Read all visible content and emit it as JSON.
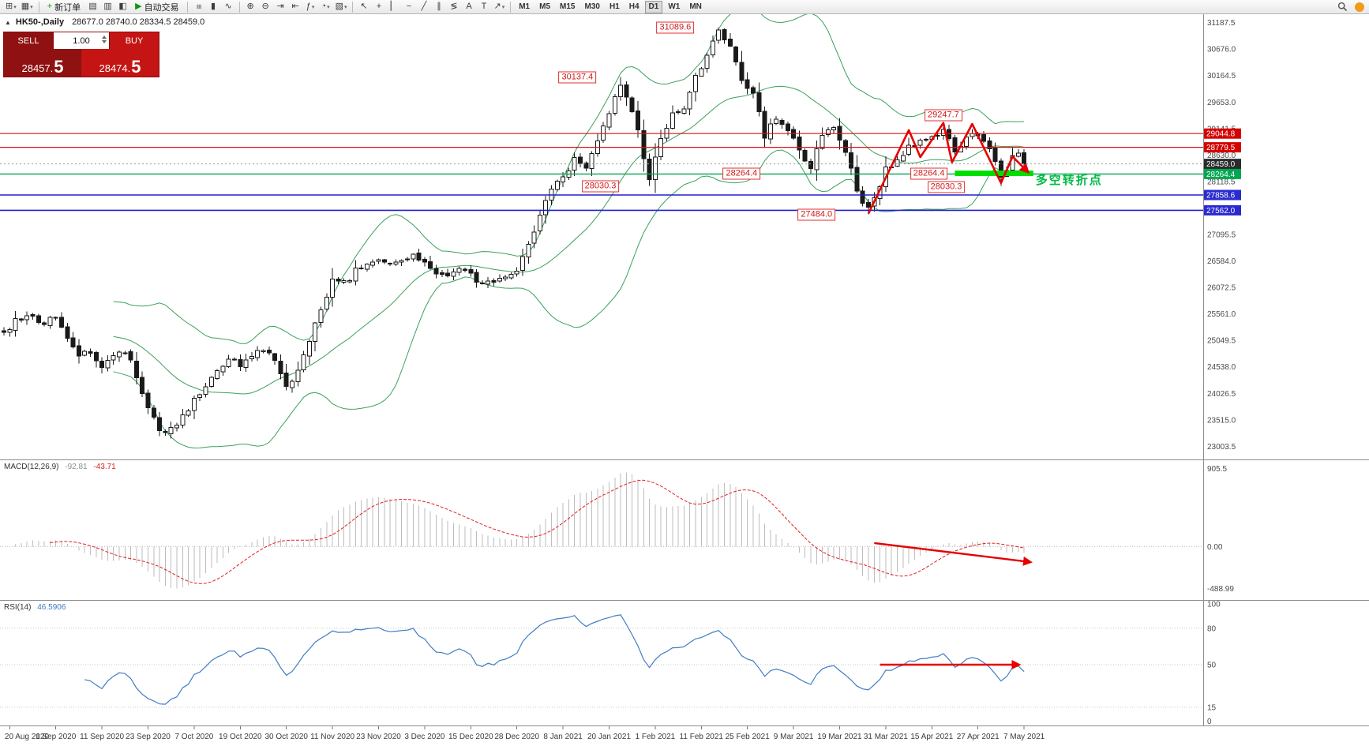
{
  "toolbar": {
    "dropdown_glyph": "▾",
    "groups": [
      {
        "items": [
          {
            "name": "new-chart",
            "icon": "new-chart-icon",
            "glyph": "⊞",
            "dd": true
          },
          {
            "name": "profiles",
            "icon": "profiles-icon",
            "glyph": "▦",
            "dd": true
          }
        ]
      },
      {
        "items": [
          {
            "name": "new-order",
            "icon": "plus-icon",
            "glyph": "+",
            "glyph_color": "#0b9a0b",
            "label": "新订单"
          },
          {
            "name": "market-watch",
            "icon": "market-watch-icon",
            "glyph": "▤"
          },
          {
            "name": "data-window",
            "icon": "data-window-icon",
            "glyph": "▥"
          },
          {
            "name": "navigator",
            "icon": "navigator-icon",
            "glyph": "◧"
          },
          {
            "name": "auto-trading",
            "icon": "play-icon",
            "glyph": "▶",
            "glyph_color": "#0b9a0b",
            "label": "自动交易"
          }
        ]
      },
      {
        "items": [
          {
            "name": "bar-chart",
            "icon": "bar-chart-icon",
            "glyph": "≡",
            "rot": true
          },
          {
            "name": "candlestick-chart",
            "icon": "candlestick-chart-icon",
            "glyph": "▮"
          },
          {
            "name": "line-chart",
            "icon": "line-chart-icon",
            "glyph": "∿"
          }
        ]
      },
      {
        "items": [
          {
            "name": "zoom-in",
            "icon": "zoom-in-icon",
            "glyph": "⊕"
          },
          {
            "name": "zoom-out",
            "icon": "zoom-out-icon",
            "glyph": "⊖"
          },
          {
            "name": "auto-scroll",
            "icon": "auto-scroll-icon",
            "glyph": "⇥"
          },
          {
            "name": "chart-shift",
            "icon": "chart-shift-icon",
            "glyph": "⇤"
          },
          {
            "name": "indicators",
            "icon": "indicators-icon",
            "glyph": "ƒ",
            "dd": true
          },
          {
            "name": "periods",
            "icon": "periods-icon",
            "glyph": "◔",
            "dd": true
          },
          {
            "name": "templates",
            "icon": "templates-icon",
            "glyph": "▧",
            "dd": true
          }
        ]
      },
      {
        "items": [
          {
            "name": "cursor",
            "icon": "cursor-icon",
            "glyph": "↖"
          },
          {
            "name": "crosshair",
            "icon": "crosshair-icon",
            "glyph": "+"
          },
          {
            "name": "vertical-line",
            "icon": "vertical-line-icon",
            "glyph": "▏"
          },
          {
            "name": "horizontal-line",
            "icon": "horizontal-line-icon",
            "glyph": "−"
          },
          {
            "name": "trendline",
            "icon": "trendline-icon",
            "glyph": "╱"
          },
          {
            "name": "equidistant-channel",
            "icon": "channel-icon",
            "glyph": "∥"
          },
          {
            "name": "fibonacci",
            "icon": "fibonacci-icon",
            "glyph": "≶"
          },
          {
            "name": "text",
            "icon": "text-icon",
            "glyph": "A"
          },
          {
            "name": "text-label",
            "icon": "text-label-icon",
            "glyph": "T"
          },
          {
            "name": "arrows",
            "icon": "arrows-icon",
            "glyph": "↗",
            "dd": true
          }
        ]
      }
    ],
    "timeframes": {
      "items": [
        "M1",
        "M5",
        "M15",
        "M30",
        "H1",
        "H4",
        "D1",
        "W1",
        "MN"
      ],
      "active": "D1"
    }
  },
  "chart": {
    "collapse_glyph": "▲",
    "symbol_period": "HK50-,Daily",
    "ohlc": "28677.0 28740.0 28334.5 28459.0"
  },
  "trade_panel": {
    "sell_label": "SELL",
    "buy_label": "BUY",
    "volume": "1.00",
    "sell_price_main": "28457.",
    "sell_price_big": "5",
    "buy_price_main": "28474.",
    "buy_price_big": "5"
  },
  "price_axis": {
    "ticks": [
      "31187.5",
      "30676.0",
      "30164.5",
      "29653.0",
      "29141.5",
      "28630.0",
      "28118.5",
      "27607.0",
      "27095.5",
      "26584.0",
      "26072.5",
      "25561.0",
      "25049.5",
      "24538.0",
      "24026.5",
      "23515.0",
      "23003.5"
    ],
    "tags": [
      {
        "text": "29044.8",
        "color": "#d40000"
      },
      {
        "text": "28779.5",
        "color": "#d40000"
      },
      {
        "text": "28459.0",
        "color": "#2b2b2b"
      },
      {
        "text": "28264.4",
        "color": "#00a651"
      },
      {
        "text": "27858.6",
        "color": "#2a2ad0"
      },
      {
        "text": "27562.0",
        "color": "#2a2ad0"
      }
    ]
  },
  "time_axis": {
    "start_day": 1,
    "step": 8,
    "labels": [
      "20 Aug 2020",
      "1 Sep 2020",
      "11 Sep 2020",
      "23 Sep 2020",
      "7 Oct 2020",
      "19 Oct 2020",
      "30 Oct 2020",
      "11 Nov 2020",
      "23 Nov 2020",
      "3 Dec 2020",
      "15 Dec 2020",
      "28 Dec 2020",
      "8 Jan 2021",
      "20 Jan 2021",
      "1 Feb 2021",
      "11 Feb 2021",
      "25 Feb 2021",
      "9 Mar 2021",
      "19 Mar 2021",
      "31 Mar 2021",
      "15 Apr 2021",
      "27 Apr 2021",
      "7 May 2021"
    ]
  },
  "indicators": {
    "macd": {
      "label": "MACD(12,26,9)",
      "value_main": "-92.81",
      "value_signal": "-43.71",
      "scale": [
        {
          "text": "905.5",
          "v": 905.5
        },
        {
          "text": "0.00",
          "v": 0
        },
        {
          "text": "-488.99",
          "v": -488.99
        }
      ]
    },
    "rsi": {
      "label": "RSI(14)",
      "value": "46.5906",
      "levels": [
        {
          "text": "100",
          "v": 100
        },
        {
          "text": "80",
          "v": 80,
          "dotted": true
        },
        {
          "text": "50",
          "v": 50,
          "dotted": true
        },
        {
          "text": "15",
          "v": 15,
          "dotted": true
        },
        {
          "text": "0",
          "v": 0
        }
      ]
    }
  },
  "chart_data": {
    "type": "candlestick",
    "symbol": "HK50",
    "timeframe": "Daily",
    "num_candles": 178,
    "visible_price_range": [
      22750,
      31350
    ],
    "close_anchors": [
      [
        0,
        25150
      ],
      [
        2,
        25420
      ],
      [
        4,
        25560
      ],
      [
        6,
        25380
      ],
      [
        9,
        25480
      ],
      [
        11,
        25120
      ],
      [
        13,
        24720
      ],
      [
        15,
        24860
      ],
      [
        17,
        24580
      ],
      [
        19,
        24720
      ],
      [
        21,
        24840
      ],
      [
        23,
        24380
      ],
      [
        25,
        23780
      ],
      [
        27,
        23270
      ],
      [
        29,
        23330
      ],
      [
        31,
        23560
      ],
      [
        33,
        23940
      ],
      [
        35,
        24180
      ],
      [
        37,
        24480
      ],
      [
        39,
        24700
      ],
      [
        41,
        24560
      ],
      [
        43,
        24720
      ],
      [
        45,
        24900
      ],
      [
        47,
        24680
      ],
      [
        49,
        24160
      ],
      [
        51,
        24480
      ],
      [
        53,
        25020
      ],
      [
        55,
        25640
      ],
      [
        57,
        26240
      ],
      [
        59,
        26140
      ],
      [
        61,
        26400
      ],
      [
        63,
        26540
      ],
      [
        65,
        26660
      ],
      [
        67,
        26500
      ],
      [
        69,
        26560
      ],
      [
        71,
        26700
      ],
      [
        73,
        26540
      ],
      [
        75,
        26340
      ],
      [
        77,
        26280
      ],
      [
        79,
        26440
      ],
      [
        81,
        26300
      ],
      [
        83,
        26160
      ],
      [
        85,
        26220
      ],
      [
        87,
        26340
      ],
      [
        89,
        26420
      ],
      [
        91,
        26920
      ],
      [
        93,
        27480
      ],
      [
        95,
        27940
      ],
      [
        97,
        28180
      ],
      [
        99,
        28540
      ],
      [
        101,
        28420
      ],
      [
        103,
        28960
      ],
      [
        105,
        29480
      ],
      [
        107,
        30020
      ],
      [
        108,
        29780
      ],
      [
        110,
        29120
      ],
      [
        112,
        28120
      ],
      [
        114,
        28940
      ],
      [
        116,
        29380
      ],
      [
        118,
        29560
      ],
      [
        120,
        30120
      ],
      [
        122,
        30580
      ],
      [
        124,
        31020
      ],
      [
        126,
        30720
      ],
      [
        128,
        30020
      ],
      [
        130,
        29820
      ],
      [
        132,
        28980
      ],
      [
        134,
        29380
      ],
      [
        136,
        29080
      ],
      [
        138,
        28720
      ],
      [
        140,
        28420
      ],
      [
        142,
        29060
      ],
      [
        144,
        29180
      ],
      [
        145,
        28980
      ],
      [
        147,
        28320
      ],
      [
        149,
        27680
      ],
      [
        150,
        27560
      ],
      [
        152,
        28060
      ],
      [
        153,
        28360
      ],
      [
        155,
        28560
      ],
      [
        157,
        28760
      ],
      [
        159,
        28880
      ],
      [
        161,
        28940
      ],
      [
        163,
        29160
      ],
      [
        165,
        28640
      ],
      [
        167,
        28980
      ],
      [
        169,
        29060
      ],
      [
        171,
        28720
      ],
      [
        173,
        28160
      ],
      [
        175,
        28620
      ],
      [
        176,
        28680
      ],
      [
        177,
        28459
      ]
    ],
    "forced_candles": [
      {
        "day": 107,
        "h": 30137.4
      },
      {
        "day": 112,
        "l": 28030.3
      },
      {
        "day": 124,
        "h": 31089.6
      },
      {
        "day": 140,
        "l": 28264.4
      },
      {
        "day": 150,
        "l": 27484.0
      },
      {
        "day": 163,
        "h": 29247.7
      },
      {
        "day": 173,
        "l": 28032.0
      },
      {
        "day": 177,
        "o": 28677.0,
        "h": 28740.0,
        "l": 28334.5,
        "c": 28459.0
      }
    ],
    "overlays": {
      "bollinger": {
        "period": 20,
        "deviation": 2,
        "color": "#3aa05a"
      }
    },
    "hlines": [
      {
        "price": 29044.8,
        "color": "#e01010",
        "w": 1.2
      },
      {
        "price": 28779.5,
        "color": "#e01010",
        "w": 1.2
      },
      {
        "price": 28459.0,
        "color": "#9a9a9a",
        "w": 1,
        "dash": "2,3"
      },
      {
        "price": 28264.4,
        "color": "#00a651",
        "w": 1.4
      },
      {
        "price": 27858.6,
        "color": "#2020cc",
        "w": 1.6
      },
      {
        "price": 27562.0,
        "color": "#2020cc",
        "w": 1.6
      }
    ],
    "annotations": [
      {
        "text": "31089.6",
        "day": 116.5,
        "price": 31089.6
      },
      {
        "text": "30137.4",
        "day": 99.5,
        "price": 30137.4
      },
      {
        "text": "29247.7",
        "day": 163,
        "price": 29400
      },
      {
        "text": "28264.4",
        "day": 128,
        "price": 28264.4
      },
      {
        "text": "28030.3",
        "day": 103.5,
        "price": 28030.3
      },
      {
        "text": "27484.0",
        "day": 141,
        "price": 27484.0
      },
      {
        "text": "28264.4",
        "day": 160.5,
        "price": 28264.4
      },
      {
        "text": "28030.3",
        "day": 163.5,
        "price": 28010
      }
    ],
    "zigzag": {
      "color": "#e60000",
      "points": [
        [
          150,
          27500
        ],
        [
          157,
          29110
        ],
        [
          159,
          28590
        ],
        [
          163,
          29250
        ],
        [
          164.5,
          28490
        ],
        [
          168,
          29230
        ],
        [
          173,
          28090
        ],
        [
          175,
          28600
        ],
        [
          177.6,
          28310
        ]
      ]
    },
    "support_zone": {
      "day_from": 165,
      "day_to": 178.6,
      "price_from": 28225,
      "price_to": 28330,
      "color": "#00dd00"
    },
    "note": {
      "text": "多空转折点",
      "day": 179,
      "price": 28130,
      "color": "#00bb44"
    },
    "macd_arrow": [
      [
        151,
        40
      ],
      [
        178,
        -180
      ]
    ],
    "rsi_arrow": [
      [
        152,
        50
      ],
      [
        176,
        50
      ]
    ]
  }
}
